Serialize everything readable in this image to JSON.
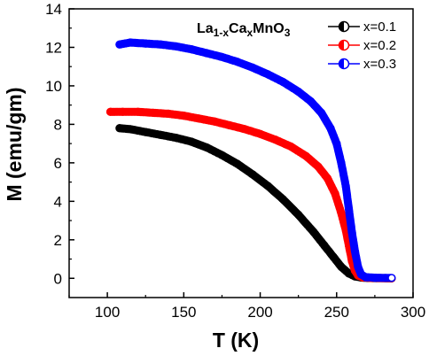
{
  "chart_data": {
    "type": "scatter",
    "title": {
      "main": "La",
      "sub1": "1-x",
      "mid": "Ca",
      "sub2": "x",
      "tail": "MnO",
      "sub3": "3"
    },
    "xlabel": "T (K)",
    "ylabel": "M (emu/gm)",
    "xlim": [
      75,
      300
    ],
    "ylim": [
      -1,
      14
    ],
    "xticks": [
      100,
      150,
      200,
      250,
      300
    ],
    "yticks": [
      0,
      2,
      4,
      6,
      8,
      10,
      12,
      14
    ],
    "grid": false,
    "legend_position": "top-right",
    "series": [
      {
        "name": "x=0.1",
        "color": "#000000",
        "points": [
          [
            108,
            7.8
          ],
          [
            115,
            7.75
          ],
          [
            125,
            7.6
          ],
          [
            135,
            7.45
          ],
          [
            145,
            7.3
          ],
          [
            155,
            7.1
          ],
          [
            165,
            6.8
          ],
          [
            175,
            6.4
          ],
          [
            185,
            5.95
          ],
          [
            195,
            5.4
          ],
          [
            205,
            4.8
          ],
          [
            215,
            4.1
          ],
          [
            225,
            3.3
          ],
          [
            235,
            2.4
          ],
          [
            242,
            1.7
          ],
          [
            248,
            1.1
          ],
          [
            253,
            0.6
          ],
          [
            258,
            0.25
          ],
          [
            262,
            0.1
          ],
          [
            266,
            0.04
          ],
          [
            270,
            0.02
          ],
          [
            276,
            0.01
          ],
          [
            282,
            0.01
          ],
          [
            286,
            0.0
          ]
        ]
      },
      {
        "name": "x=0.2",
        "color": "#ff0000",
        "points": [
          [
            102,
            8.65
          ],
          [
            110,
            8.65
          ],
          [
            120,
            8.65
          ],
          [
            130,
            8.6
          ],
          [
            140,
            8.55
          ],
          [
            150,
            8.45
          ],
          [
            160,
            8.3
          ],
          [
            170,
            8.15
          ],
          [
            180,
            7.95
          ],
          [
            190,
            7.75
          ],
          [
            200,
            7.5
          ],
          [
            210,
            7.2
          ],
          [
            220,
            6.85
          ],
          [
            230,
            6.35
          ],
          [
            238,
            5.8
          ],
          [
            244,
            5.2
          ],
          [
            249,
            4.4
          ],
          [
            253,
            3.4
          ],
          [
            256,
            2.5
          ],
          [
            258,
            1.7
          ],
          [
            260,
            0.9
          ],
          [
            262,
            0.4
          ],
          [
            264,
            0.15
          ],
          [
            267,
            0.05
          ],
          [
            272,
            0.02
          ],
          [
            280,
            0.01
          ],
          [
            286,
            0.0
          ]
        ]
      },
      {
        "name": "x=0.3",
        "color": "#0000ff",
        "points": [
          [
            108,
            12.15
          ],
          [
            115,
            12.25
          ],
          [
            125,
            12.2
          ],
          [
            135,
            12.15
          ],
          [
            145,
            12.05
          ],
          [
            155,
            11.9
          ],
          [
            165,
            11.7
          ],
          [
            175,
            11.5
          ],
          [
            185,
            11.25
          ],
          [
            195,
            10.95
          ],
          [
            205,
            10.6
          ],
          [
            215,
            10.2
          ],
          [
            225,
            9.7
          ],
          [
            233,
            9.2
          ],
          [
            240,
            8.6
          ],
          [
            246,
            7.8
          ],
          [
            250,
            7.0
          ],
          [
            253,
            6.0
          ],
          [
            256,
            4.8
          ],
          [
            258,
            3.6
          ],
          [
            260,
            2.4
          ],
          [
            262,
            1.4
          ],
          [
            264,
            0.6
          ],
          [
            266,
            0.2
          ],
          [
            269,
            0.06
          ],
          [
            275,
            0.03
          ],
          [
            282,
            0.02
          ],
          [
            286,
            0.02
          ]
        ]
      }
    ]
  }
}
